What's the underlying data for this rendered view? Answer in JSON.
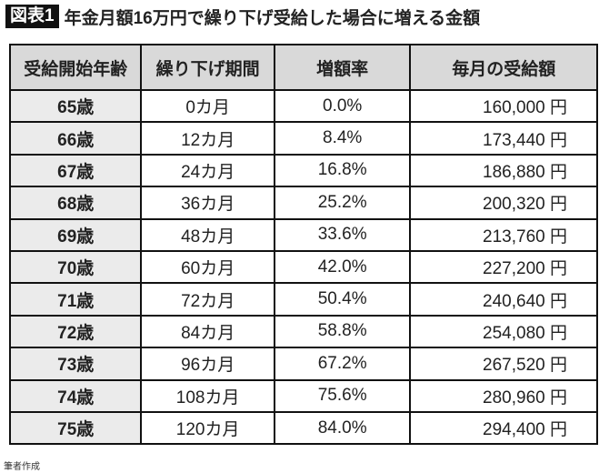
{
  "header": {
    "label": "図表1",
    "title": "年金月額16万円で繰り下げ受給した場合に増える金額"
  },
  "table": {
    "columns": [
      "受給開始年齢",
      "繰り下げ期間",
      "増額率",
      "毎月の受給額"
    ],
    "rows": [
      [
        "65歳",
        "0カ月",
        "0.0%",
        "160,000 円"
      ],
      [
        "66歳",
        "12カ月",
        "8.4%",
        "173,440 円"
      ],
      [
        "67歳",
        "24カ月",
        "16.8%",
        "186,880 円"
      ],
      [
        "68歳",
        "36カ月",
        "25.2%",
        "200,320 円"
      ],
      [
        "69歳",
        "48カ月",
        "33.6%",
        "213,760 円"
      ],
      [
        "70歳",
        "60カ月",
        "42.0%",
        "227,200 円"
      ],
      [
        "71歳",
        "72カ月",
        "50.4%",
        "240,640 円"
      ],
      [
        "72歳",
        "84カ月",
        "58.8%",
        "254,080 円"
      ],
      [
        "73歳",
        "96カ月",
        "67.2%",
        "267,520 円"
      ],
      [
        "74歳",
        "108カ月",
        "75.6%",
        "280,960 円"
      ],
      [
        "75歳",
        "120カ月",
        "84.0%",
        "294,400 円"
      ]
    ]
  },
  "footer": {
    "source": "筆者作成"
  }
}
